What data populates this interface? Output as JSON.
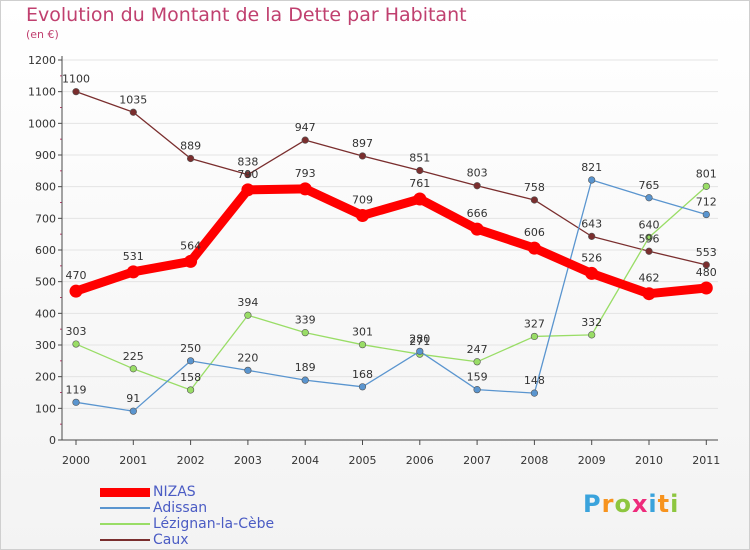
{
  "header": {
    "title": "Evolution du Montant de la Dette par Habitant",
    "subtitle": "(en €)"
  },
  "colors": {
    "title": "#c0406f",
    "legend_text": "#4b5cc4",
    "axis": "#4a4a4a",
    "grid": "#e4e4e4"
  },
  "chart_data": {
    "type": "line",
    "title": "Evolution du Montant de la Dette par Habitant",
    "subtitle": "(en €)",
    "xlabel": "",
    "ylabel": "",
    "x": [
      "2000",
      "2001",
      "2002",
      "2003",
      "2004",
      "2005",
      "2006",
      "2007",
      "2008",
      "2009",
      "2010",
      "2011"
    ],
    "ylim": [
      0,
      1200
    ],
    "yticks": [
      0,
      100,
      200,
      300,
      400,
      500,
      600,
      700,
      800,
      900,
      1000,
      1100,
      1200
    ],
    "grid": "horizontal",
    "legend_position": "bottom-left",
    "series": [
      {
        "name": "NIZAS",
        "color": "#ff0000",
        "values": [
          470,
          531,
          564,
          790,
          793,
          709,
          761,
          666,
          606,
          526,
          462,
          480
        ]
      },
      {
        "name": "Adissan",
        "color": "#5a95cf",
        "values": [
          119,
          91,
          250,
          220,
          189,
          168,
          280,
          159,
          148,
          821,
          765,
          712
        ]
      },
      {
        "name": "Lézignan-la-Cèbe",
        "color": "#99dd66",
        "values": [
          303,
          225,
          158,
          394,
          339,
          301,
          271,
          247,
          327,
          332,
          640,
          801
        ]
      },
      {
        "name": "Caux",
        "color": "#7a2e2e",
        "values": [
          1100,
          1035,
          889,
          838,
          947,
          897,
          851,
          803,
          758,
          643,
          596,
          553
        ]
      }
    ]
  },
  "logo": {
    "letters": [
      "P",
      "r",
      "o",
      "x",
      "i",
      "t",
      "i"
    ],
    "colors": [
      "#3aa3dc",
      "#f7931e",
      "#8dc63f",
      "#ee2a7b",
      "#3aa3dc",
      "#f7931e",
      "#8dc63f"
    ]
  }
}
